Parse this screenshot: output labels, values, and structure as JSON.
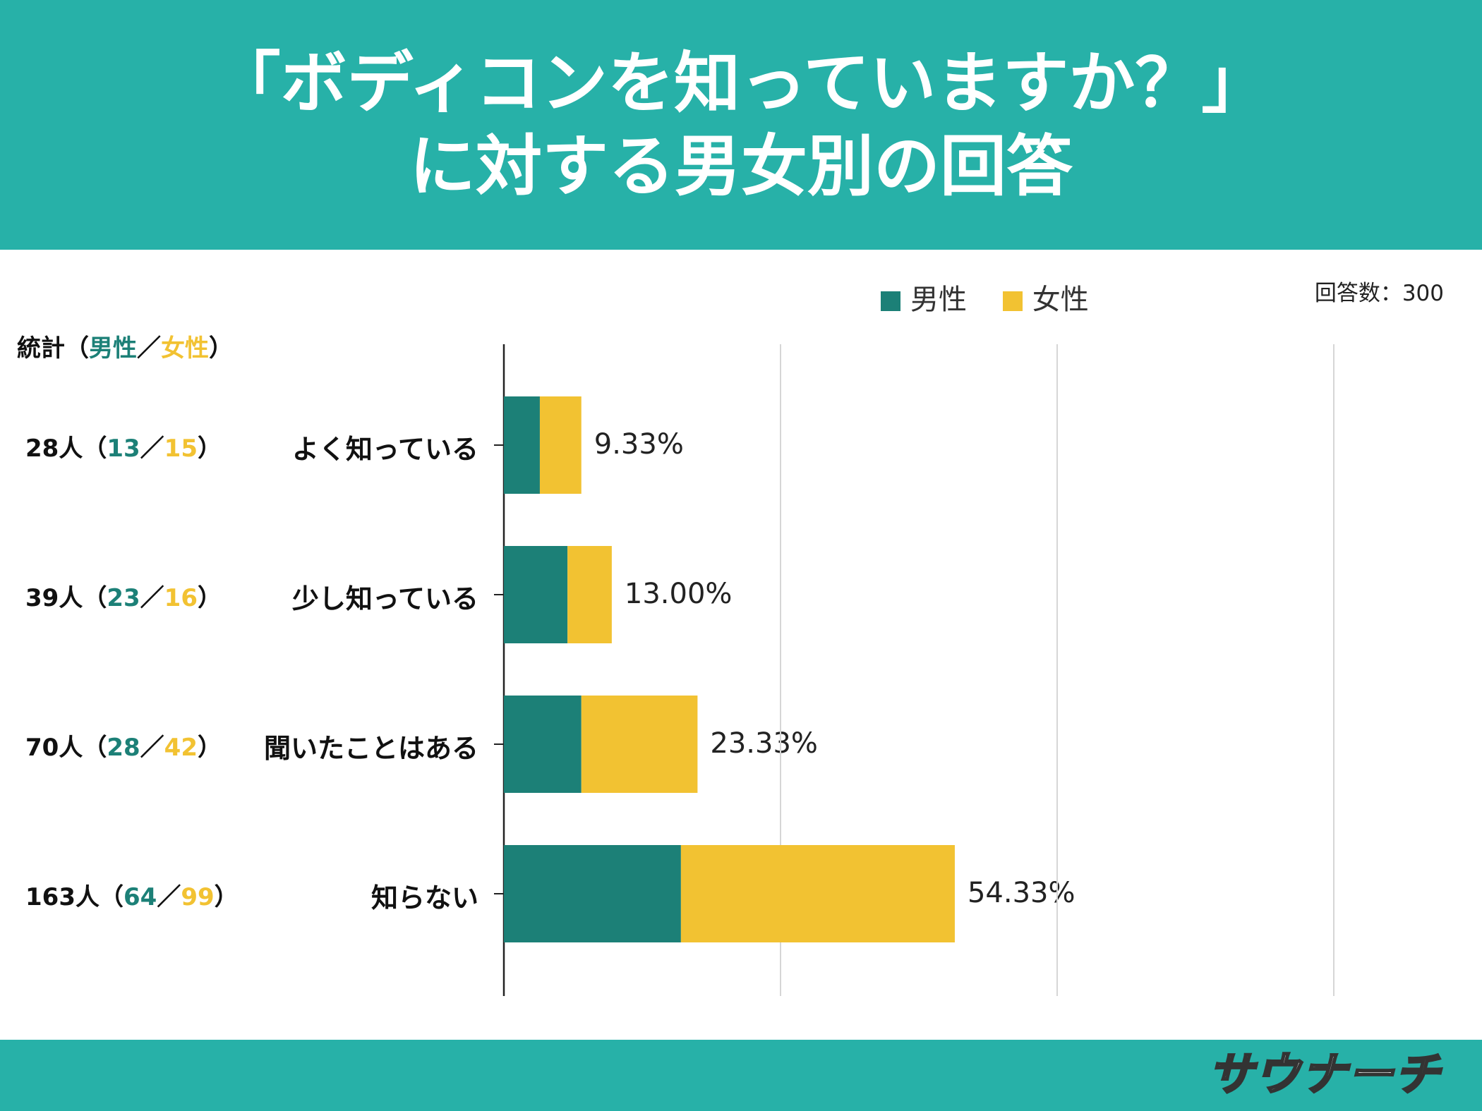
{
  "header": {
    "title_line1": "「ボディコンを知っていますか？」",
    "title_line2": "に対する男女別の回答"
  },
  "respondents": "回答数：300",
  "legend": {
    "male": "男性",
    "female": "女性"
  },
  "stats_header": {
    "prefix": "統計（",
    "male": "男性",
    "sep": "／",
    "female": "女性",
    "suffix": "）"
  },
  "colors": {
    "male": "#1c8077",
    "female": "#f2c232",
    "header": "#27b1a8"
  },
  "chart_data": {
    "type": "bar",
    "orientation": "horizontal",
    "stacked": true,
    "categories": [
      "よく知っている",
      "少し知っている",
      "聞いたことはある",
      "知らない"
    ],
    "series": [
      {
        "name": "男性",
        "values": [
          13,
          23,
          28,
          64
        ]
      },
      {
        "name": "女性",
        "values": [
          15,
          16,
          42,
          99
        ]
      }
    ],
    "totals": [
      28,
      39,
      70,
      163
    ],
    "percent_labels": [
      "9.33%",
      "13.00%",
      "23.33%",
      "54.33%"
    ],
    "stat_labels": [
      {
        "total": "28人",
        "male": "13",
        "female": "15"
      },
      {
        "total": "39人",
        "male": "23",
        "female": "16"
      },
      {
        "total": "70人",
        "male": "28",
        "female": "42"
      },
      {
        "total": "163人",
        "male": "64",
        "female": "99"
      }
    ],
    "xlim": [
      0,
      300
    ],
    "grid": true,
    "legend_position": "top"
  },
  "logo_text": "サウナーチ"
}
